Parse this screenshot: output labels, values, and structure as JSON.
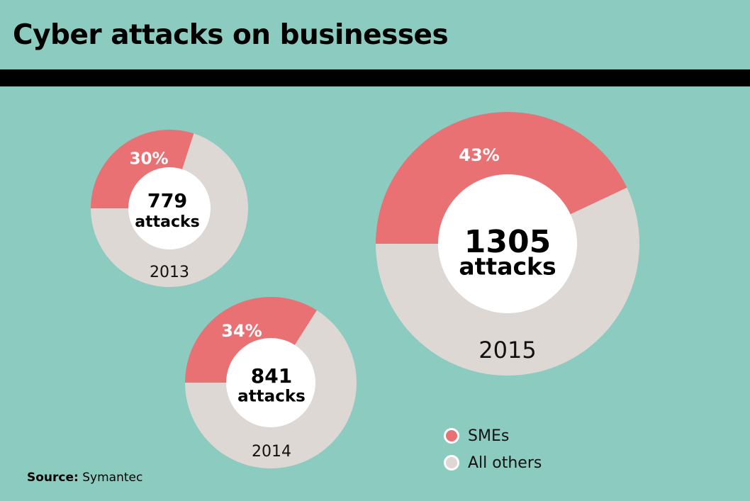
{
  "title": "Cyber attacks on businesses",
  "source": {
    "label": "Source:",
    "value": "Symantec"
  },
  "colors": {
    "background": "#8ccbc0",
    "title_rule": "#000000",
    "smes": "#e97073",
    "others": "#ddd8d4",
    "center": "#ffffff"
  },
  "legend": [
    {
      "name": "SMEs",
      "color": "#e97073"
    },
    {
      "name": "All others",
      "color": "#ddd8d4"
    }
  ],
  "chart_data": {
    "type": "pie",
    "variant": "donut",
    "series": [
      {
        "year": "2013",
        "total": 779,
        "total_label": "779",
        "unit": "attacks",
        "smes_pct": 30,
        "smes_label": "30%",
        "others_pct": 70
      },
      {
        "year": "2014",
        "total": 841,
        "total_label": "841",
        "unit": "attacks",
        "smes_pct": 34,
        "smes_label": "34%",
        "others_pct": 66
      },
      {
        "year": "2015",
        "total": 1305,
        "total_label": "1305",
        "unit": "attacks",
        "smes_pct": 43,
        "smes_label": "43%",
        "others_pct": 57
      }
    ],
    "legend_position": "bottom-right"
  }
}
